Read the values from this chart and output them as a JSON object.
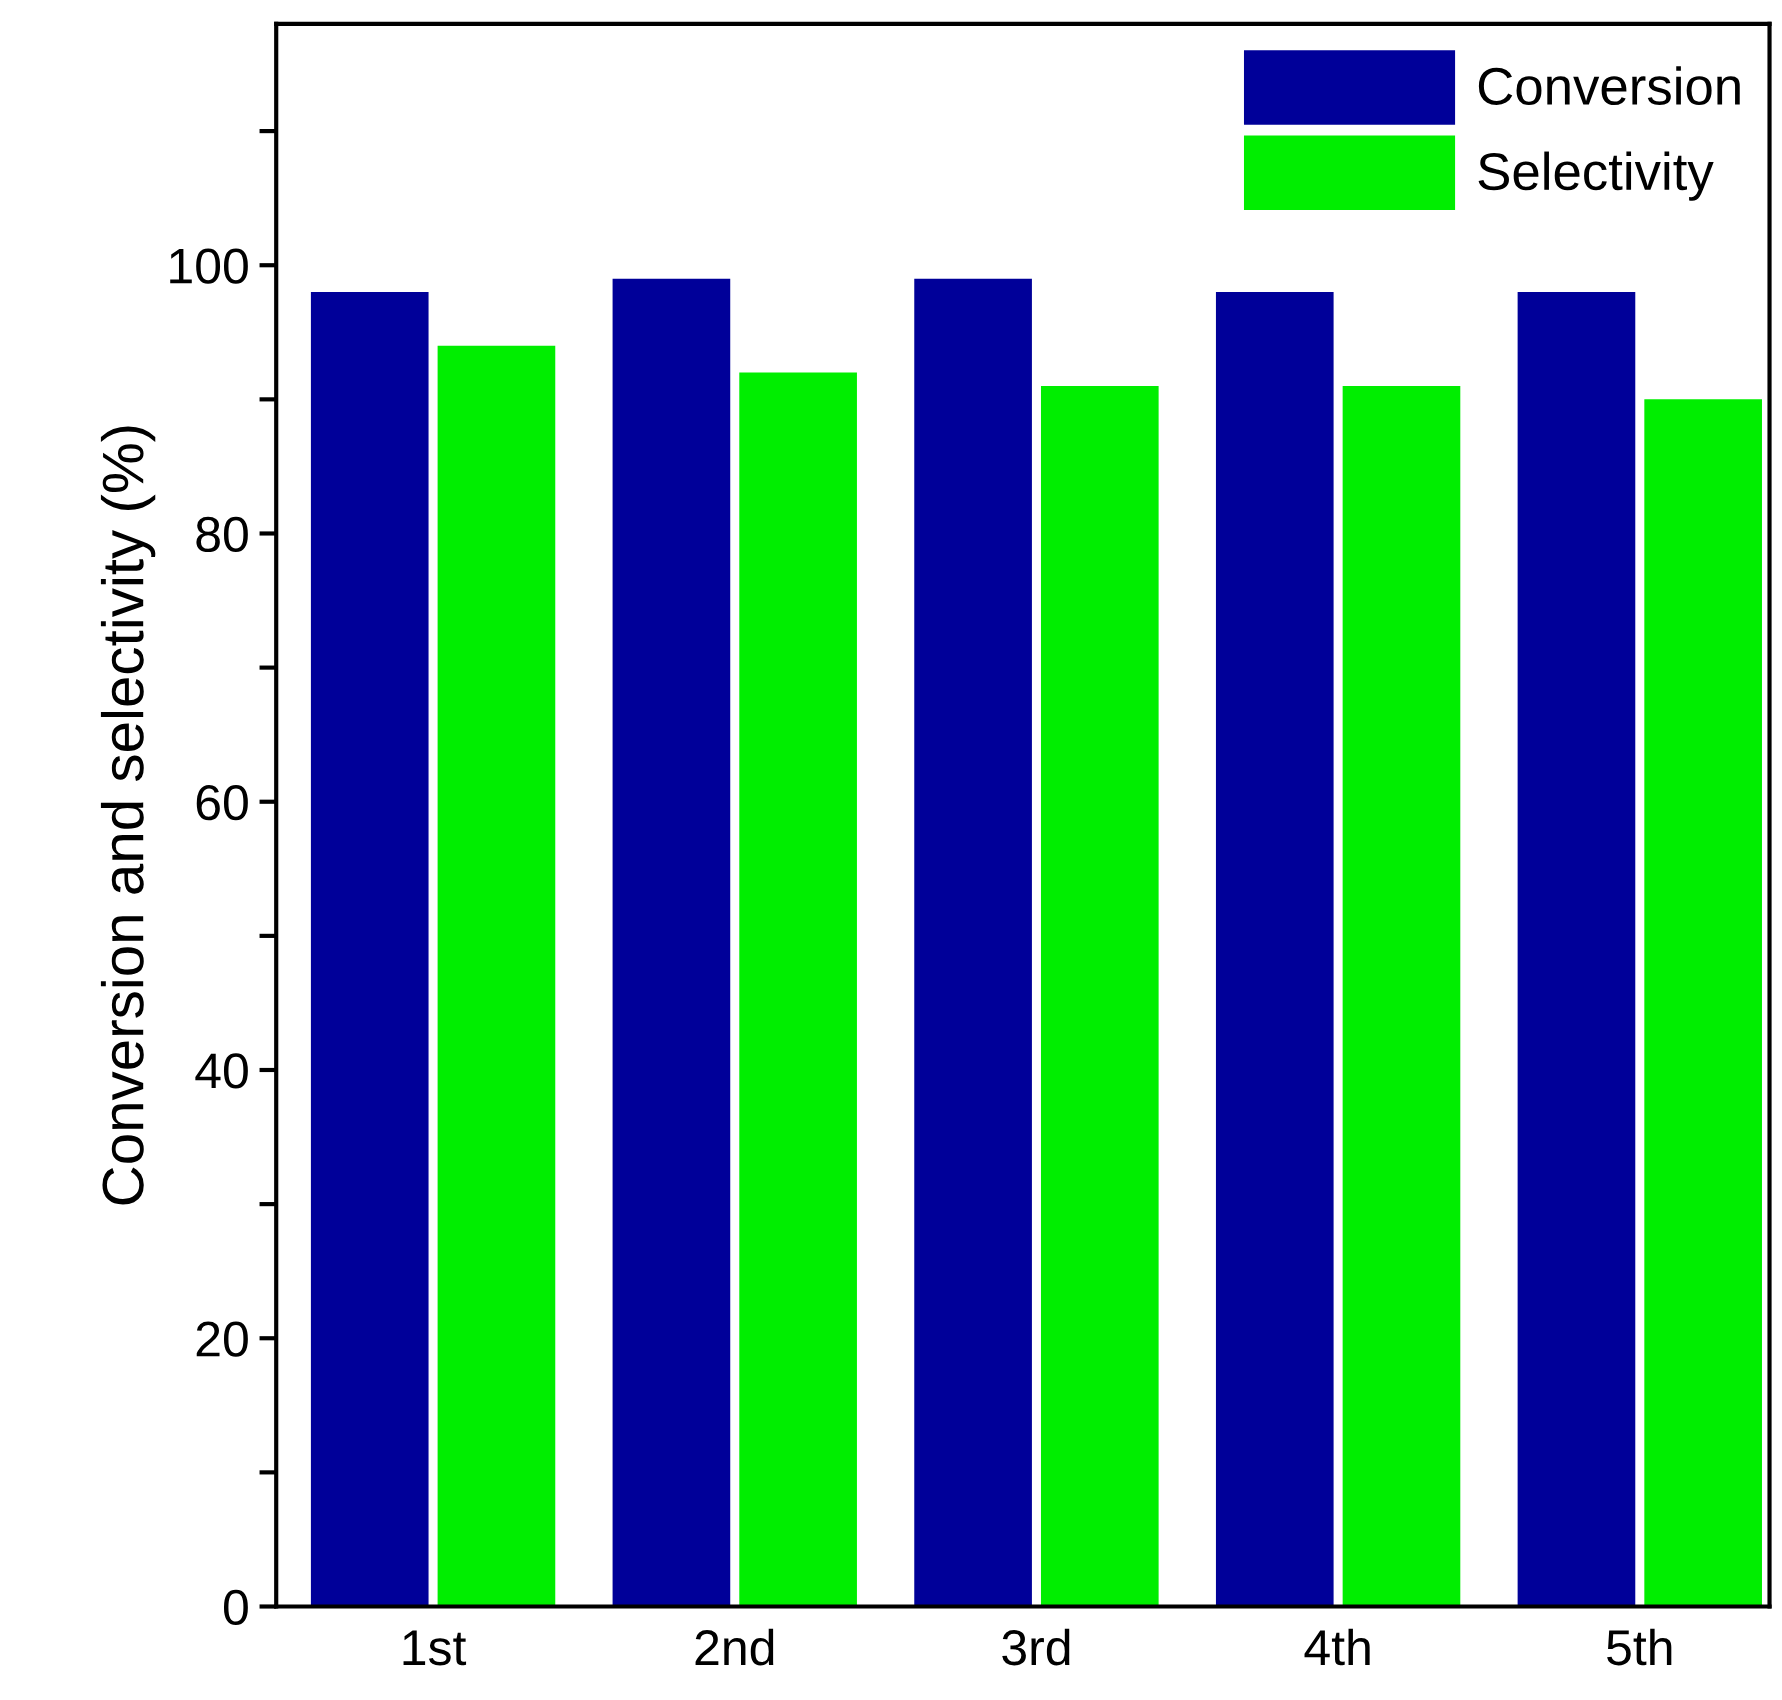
{
  "chart_data": {
    "type": "bar",
    "ylabel": "Conversion and selectivity (%)",
    "categories": [
      "1st",
      "2nd",
      "3rd",
      "4th",
      "5th"
    ],
    "series": [
      {
        "name": "Conversion",
        "color": "#000099",
        "values": [
          98,
          99,
          99,
          98,
          98
        ]
      },
      {
        "name": "Selectivity",
        "color": "#00ee00",
        "values": [
          94,
          92,
          91,
          91,
          90
        ]
      }
    ],
    "ylim": [
      0,
      118
    ],
    "yticks": [
      0,
      {
        "value": 10,
        "label": null
      },
      20,
      {
        "value": 30,
        "label": null
      },
      40,
      {
        "value": 50,
        "label": null
      },
      60,
      {
        "value": 70,
        "label": null
      },
      80,
      {
        "value": 90,
        "label": null
      },
      100,
      {
        "value": 110,
        "label": null
      }
    ],
    "grid": false,
    "legend": "top right"
  }
}
